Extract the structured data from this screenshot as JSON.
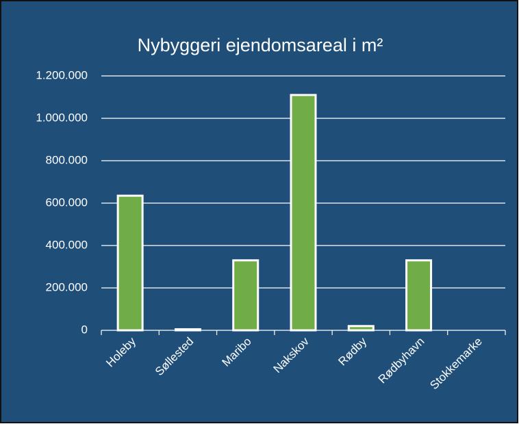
{
  "chart_data": {
    "type": "bar",
    "title": "Nybyggeri ejendomsareal i m²",
    "categories": [
      "Holeby",
      "Søllested",
      "Maribo",
      "Nakskov",
      "Rødby",
      "Rødbyhavn",
      "Stokkemarke"
    ],
    "values": [
      635000,
      5000,
      330000,
      1110000,
      20000,
      330000,
      0
    ],
    "color": "#70ad47",
    "ylim": [
      0,
      1200000
    ],
    "yticks": [
      0,
      {
        "value": 200000,
        "label": "200.000"
      },
      {
        "value": 400000,
        "label": "400.000"
      },
      {
        "value": 600000,
        "label": "600.000"
      },
      {
        "value": 800000,
        "label": "800.000"
      },
      {
        "value": 1000000,
        "label": "1.000.000"
      },
      {
        "value": 1200000,
        "label": "1.200.000"
      }
    ],
    "grid": true
  }
}
